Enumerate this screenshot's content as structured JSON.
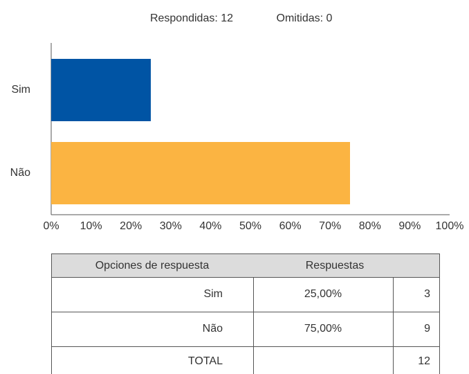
{
  "header": {
    "answered": "Respondidas: 12",
    "skipped": "Omitidas: 0"
  },
  "chart_data": {
    "type": "hbar",
    "categories": [
      "Sim",
      "Não"
    ],
    "values": [
      25,
      75
    ],
    "colors": [
      "#0054a4",
      "#fbb442"
    ],
    "xlim": [
      0,
      100
    ],
    "xticks": [
      {
        "value": 0,
        "label": "0%"
      },
      {
        "value": 10,
        "label": "10%"
      },
      {
        "value": 20,
        "label": "20%"
      },
      {
        "value": 30,
        "label": "30%"
      },
      {
        "value": 40,
        "label": "40%"
      },
      {
        "value": 50,
        "label": "50%"
      },
      {
        "value": 60,
        "label": "60%"
      },
      {
        "value": 70,
        "label": "70%"
      },
      {
        "value": 80,
        "label": "80%"
      },
      {
        "value": 90,
        "label": "90%"
      },
      {
        "value": 100,
        "label": "100%"
      }
    ],
    "grid": false
  },
  "table": {
    "header": [
      "Opciones de respuesta",
      "Respuestas"
    ],
    "rows": [
      [
        "Sim",
        "25,00%",
        3
      ],
      [
        "Não",
        "75,00%",
        9
      ]
    ],
    "total": {
      "label": "TOTAL",
      "count": 12
    }
  }
}
